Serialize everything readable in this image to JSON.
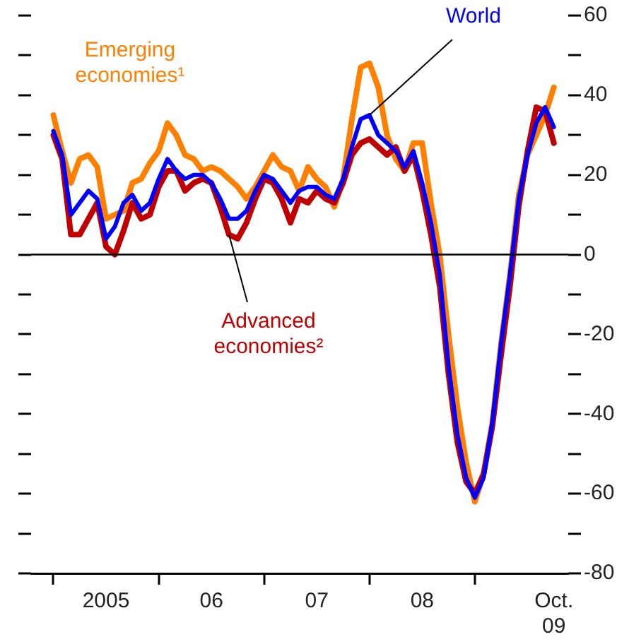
{
  "chart_data": {
    "type": "line",
    "x": [
      "2005-01",
      "2005-02",
      "2005-03",
      "2005-04",
      "2005-05",
      "2005-06",
      "2005-07",
      "2005-08",
      "2005-09",
      "2005-10",
      "2005-11",
      "2005-12",
      "2006-01",
      "2006-02",
      "2006-03",
      "2006-04",
      "2006-05",
      "2006-06",
      "2006-07",
      "2006-08",
      "2006-09",
      "2006-10",
      "2006-11",
      "2006-12",
      "2007-01",
      "2007-02",
      "2007-03",
      "2007-04",
      "2007-05",
      "2007-06",
      "2007-07",
      "2007-08",
      "2007-09",
      "2007-10",
      "2007-11",
      "2007-12",
      "2008-01",
      "2008-02",
      "2008-03",
      "2008-04",
      "2008-05",
      "2008-06",
      "2008-07",
      "2008-08",
      "2008-09",
      "2008-10",
      "2008-11",
      "2008-12",
      "2009-01",
      "2009-02",
      "2009-03",
      "2009-04",
      "2009-05",
      "2009-06",
      "2009-07",
      "2009-08",
      "2009-09",
      "2009-10"
    ],
    "series": [
      {
        "name": "World",
        "color": "#0000ff",
        "values": [
          31,
          25,
          10,
          13,
          16,
          14,
          4,
          7,
          13,
          15,
          11,
          13,
          19,
          24,
          21,
          19,
          20,
          20,
          18,
          14,
          9,
          9,
          11,
          16,
          20,
          19,
          16,
          13,
          16,
          17,
          17,
          15,
          14,
          19,
          27,
          34,
          35,
          30,
          28,
          26,
          22,
          26,
          18,
          8,
          -5,
          -28,
          -45,
          -56,
          -61,
          -56,
          -42,
          -22,
          -5,
          14,
          25,
          33,
          37,
          32
        ]
      },
      {
        "name": "Advanced economies²",
        "color": "#c00000",
        "values": [
          30,
          24,
          5,
          5,
          9,
          13,
          2,
          0,
          6,
          13,
          9,
          10,
          17,
          21,
          21,
          16,
          18,
          19,
          18,
          12,
          5,
          4,
          8,
          14,
          19,
          18,
          14,
          8,
          14,
          13,
          16,
          14,
          13,
          18,
          25,
          28,
          29,
          27,
          25,
          27,
          21,
          25,
          16,
          5,
          -8,
          -30,
          -47,
          -57,
          -60,
          -55,
          -43,
          -25,
          -8,
          12,
          26,
          37,
          36,
          28
        ]
      },
      {
        "name": "Emerging economies¹",
        "color": "#ff8000",
        "values": [
          35,
          26,
          18,
          24,
          25,
          22,
          9,
          10,
          11,
          18,
          19,
          23,
          26,
          33,
          30,
          25,
          24,
          21,
          22,
          21,
          19,
          17,
          14,
          17,
          21,
          25,
          22,
          21,
          16,
          22,
          19,
          17,
          12,
          19,
          34,
          47,
          48,
          42,
          30,
          24,
          21,
          28,
          28,
          13,
          0,
          -20,
          -38,
          -52,
          -62,
          -55,
          -42,
          -22,
          -5,
          15,
          25,
          30,
          35,
          42
        ]
      }
    ],
    "xlim": [
      "2004-10-15",
      "2009-11-20"
    ],
    "xticks": [
      {
        "value": "2005-01",
        "label": null
      },
      {
        "value": "2005-07",
        "label": "2005"
      },
      {
        "value": "2006-01",
        "label": null
      },
      {
        "value": "2006-07",
        "label": "06"
      },
      {
        "value": "2007-01",
        "label": null
      },
      {
        "value": "2007-07",
        "label": "07"
      },
      {
        "value": "2008-01",
        "label": null
      },
      {
        "value": "2008-07",
        "label": "08"
      },
      {
        "value": "2009-01",
        "label": null
      },
      {
        "value": "2009-10",
        "label": "Oct. 09"
      }
    ],
    "ylim": [
      -80,
      60
    ],
    "yticks": [
      -80,
      {
        "value": -70,
        "label": null
      },
      -60,
      {
        "value": -50,
        "label": null
      },
      -40,
      {
        "value": -30,
        "label": null
      },
      -20,
      {
        "value": -10,
        "label": null
      },
      0,
      {
        "value": 10,
        "label": null
      },
      20,
      {
        "value": 30,
        "label": null
      },
      40,
      {
        "value": 50,
        "label": null
      },
      60
    ],
    "ref_lines": [
      {
        "axis": "y",
        "value": 0,
        "color": "#000000"
      }
    ],
    "grid": false,
    "legend": false,
    "marker": "none",
    "line_style": "solid"
  }
}
